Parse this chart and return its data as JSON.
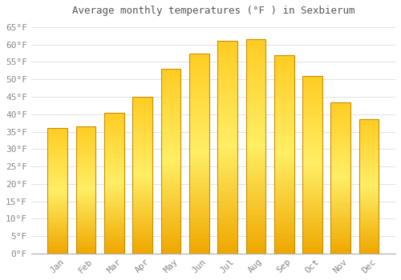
{
  "title": "Average monthly temperatures (°F ) in Sexbierum",
  "months": [
    "Jan",
    "Feb",
    "Mar",
    "Apr",
    "May",
    "Jun",
    "Jul",
    "Aug",
    "Sep",
    "Oct",
    "Nov",
    "Dec"
  ],
  "values": [
    36,
    36.5,
    40.5,
    45,
    53,
    57.5,
    61,
    61.5,
    57,
    51,
    43.5,
    38.5
  ],
  "bar_color_top": "#FFD966",
  "bar_color_mid": "#FFBB33",
  "bar_color_bottom": "#F0A800",
  "bar_edge_color": "#C89000",
  "background_color": "#FFFFFF",
  "plot_bg_color": "#FFFFFF",
  "grid_color": "#DDDDDD",
  "text_color": "#888888",
  "title_color": "#555555",
  "ylim": [
    0,
    67
  ],
  "yticks": [
    0,
    5,
    10,
    15,
    20,
    25,
    30,
    35,
    40,
    45,
    50,
    55,
    60,
    65
  ],
  "figsize": [
    5.0,
    3.5
  ],
  "dpi": 100
}
